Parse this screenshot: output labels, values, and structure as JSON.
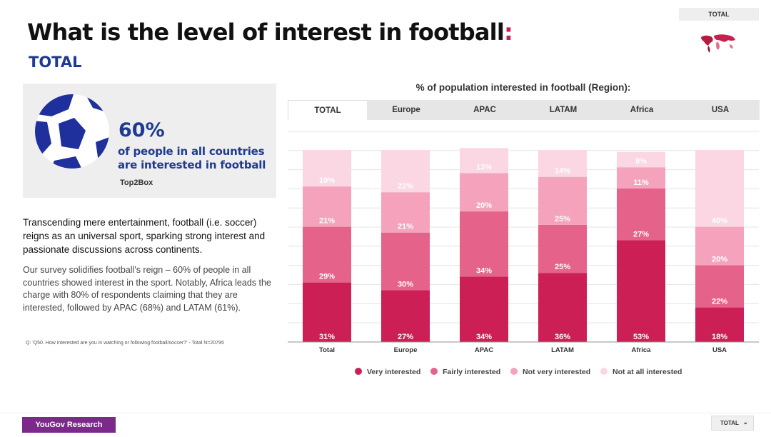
{
  "header": {
    "title": "What is the level of interest in football",
    "title_colon": ":",
    "subtitle": "TOTAL",
    "badge": "TOTAL"
  },
  "summary": {
    "percent": "60%",
    "line1": "of people in all countries",
    "line2": "are interested in football",
    "tag": "Top2Box"
  },
  "body": {
    "para1": "Transcending mere entertainment, football (i.e. soccer) reigns as an universal sport, sparking strong interest and passionate discussions across continents.",
    "para2": "Our survey solidifies football's reign – 60% of people in all countries showed interest in the sport. Notably, Africa leads the charge with 80% of respondents claiming that they are interested, followed by APAC (68%) and LATAM (61%).",
    "footnote": "Q: 'Q50. How interested are you in watching or following football/soccer?' - Total N=20795"
  },
  "tabs": [
    "TOTAL",
    "Europe",
    "APAC",
    "LATAM",
    "Africa",
    "USA"
  ],
  "footer": {
    "logo": "YouGov Research",
    "dropdown": "TOTAL"
  },
  "colors": {
    "very": "#cc1f55",
    "fairly": "#e5628a",
    "not_very": "#f5a3bd",
    "not_at_all": "#fbd7e3",
    "brand_blue": "#1f3a93",
    "accent": "#c8204e"
  },
  "chart_data": {
    "type": "bar",
    "stacked": true,
    "title": "% of population interested in football (Region):",
    "categories": [
      "Total",
      "Europe",
      "APAC",
      "LATAM",
      "Africa",
      "USA"
    ],
    "series": [
      {
        "name": "Very interested",
        "values": [
          31,
          27,
          34,
          36,
          53,
          18
        ]
      },
      {
        "name": "Fairly interested",
        "values": [
          29,
          30,
          34,
          25,
          27,
          22
        ]
      },
      {
        "name": "Not very interested",
        "values": [
          21,
          21,
          20,
          25,
          11,
          20
        ]
      },
      {
        "name": "Not at all interested",
        "values": [
          19,
          22,
          13,
          14,
          8,
          40
        ]
      }
    ],
    "ylim": [
      0,
      100
    ],
    "xlabel": "",
    "ylabel": "",
    "grid": true,
    "legend": "bottom"
  }
}
